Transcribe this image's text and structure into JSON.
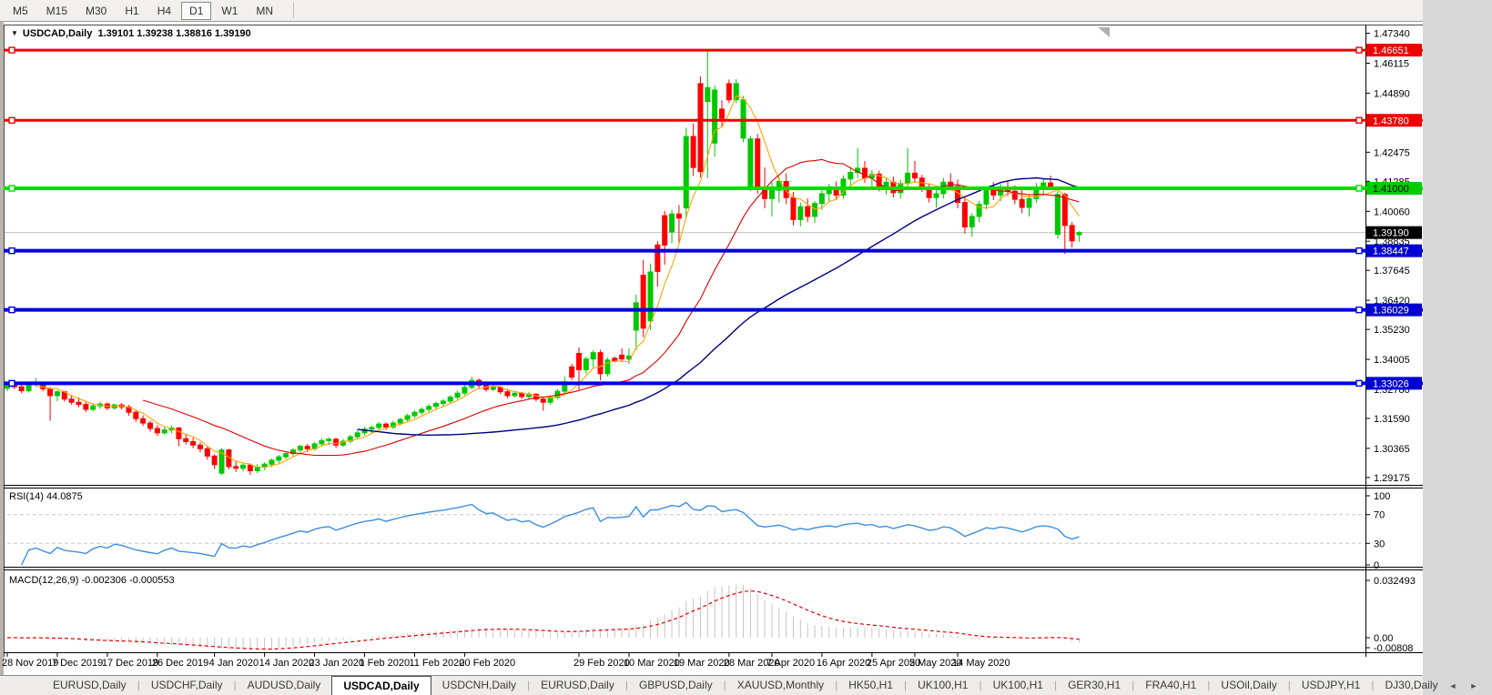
{
  "toolbar": {
    "timeframes": [
      "M5",
      "M15",
      "M30",
      "H1",
      "H4",
      "D1",
      "W1",
      "MN"
    ],
    "active": "D1"
  },
  "window": {
    "title_arrow": "▼",
    "symbol_title": "USDCAD,Daily",
    "ohlc_text": "1.39101 1.39238 1.38816 1.39190"
  },
  "chart_data": {
    "type": "candlestick",
    "symbol": "USDCAD",
    "timeframe": "Daily",
    "ohlc_title": [
      "1.39101",
      "1.39238",
      "1.38816",
      "1.39190"
    ],
    "colors": {
      "up": "#00C800",
      "down": "#FF0000",
      "ma_fast": "#FFA500",
      "ma_mid": "#DC0000",
      "ma_slow": "#000080",
      "bid_line": "#C0C0C0",
      "rsi_line": "#3E8EDE",
      "macd_hist": "#C4C4C4",
      "macd_signal": "#E00000",
      "level_red": "#EE0000",
      "level_green": "#00DD00",
      "level_blue": "#0000E0"
    },
    "price_axis_ticks": [
      "1.47340",
      "1.46115",
      "1.44890",
      "1.42475",
      "1.41285",
      "1.40060",
      "1.38835",
      "1.37645",
      "1.36420",
      "1.35230",
      "1.34005",
      "1.32780",
      "1.31590",
      "1.30365",
      "1.29175"
    ],
    "hlines": [
      {
        "price": 1.46651,
        "color": "#EE0000",
        "width": 3
      },
      {
        "price": 1.4378,
        "color": "#EE0000",
        "width": 3
      },
      {
        "price": 1.41,
        "color": "#00DD00",
        "width": 4
      },
      {
        "price": 1.38447,
        "color": "#0000E0",
        "width": 4
      },
      {
        "price": 1.36029,
        "color": "#0000E0",
        "width": 4
      },
      {
        "price": 1.33026,
        "color": "#0000E0",
        "width": 4
      }
    ],
    "current_price": {
      "text": "1.39190",
      "price": 1.3919
    },
    "badges": [
      {
        "text": "1.46651",
        "price": 1.46651,
        "bg": "#EE0000",
        "fg": "#ffffff"
      },
      {
        "text": "1.43780",
        "price": 1.4378,
        "bg": "#EE0000",
        "fg": "#ffffff"
      },
      {
        "text": "1.41000",
        "price": 1.41,
        "bg": "#00CC00",
        "fg": "#000000"
      },
      {
        "text": "1.39190",
        "price": 1.3919,
        "bg": "#000000",
        "fg": "#ffffff"
      },
      {
        "text": "1.38447",
        "price": 1.38447,
        "bg": "#0000D0",
        "fg": "#ffffff"
      },
      {
        "text": "1.36029",
        "price": 1.36029,
        "bg": "#0000D0",
        "fg": "#ffffff"
      },
      {
        "text": "1.33026",
        "price": 1.33026,
        "bg": "#0000D0",
        "fg": "#ffffff"
      }
    ],
    "moving_averages": [
      {
        "period": 5,
        "color": "#FFA500"
      },
      {
        "period": 20,
        "color": "#DC0000"
      },
      {
        "period": 50,
        "color": "#000080"
      }
    ],
    "x_labels": [
      {
        "i": 0,
        "t": "28 Nov 2019"
      },
      {
        "i": 7,
        "t": "7 Dec 2019"
      },
      {
        "i": 14,
        "t": "17 Dec 2019"
      },
      {
        "i": 21,
        "t": "26 Dec 2019"
      },
      {
        "i": 29,
        "t": "4 Jan 2020"
      },
      {
        "i": 36,
        "t": "14 Jan 2020"
      },
      {
        "i": 43,
        "t": "23 Jan 2020"
      },
      {
        "i": 50,
        "t": "1 Feb 2020"
      },
      {
        "i": 57,
        "t": "11 Feb 2020"
      },
      {
        "i": 64,
        "t": "20 Feb 2020"
      },
      {
        "i": 80,
        "t": "29 Feb 2020"
      },
      {
        "i": 87,
        "t": "10 Mar 2020"
      },
      {
        "i": 94,
        "t": "19 Mar 2020"
      },
      {
        "i": 101,
        "t": "28 Mar 2020"
      },
      {
        "i": 107,
        "t": "7 Apr 2020"
      },
      {
        "i": 114,
        "t": "16 Apr 2020"
      },
      {
        "i": 121,
        "t": "25 Apr 2020"
      },
      {
        "i": 127,
        "t": "5 May 2020"
      },
      {
        "i": 133,
        "t": "14 May 2020"
      }
    ],
    "candles": [
      [
        1.3282,
        1.3308,
        1.327,
        1.3295
      ],
      [
        1.3295,
        1.3312,
        1.3278,
        1.3288
      ],
      [
        1.3288,
        1.33,
        1.3262,
        1.3272
      ],
      [
        1.3272,
        1.3305,
        1.3265,
        1.3298
      ],
      [
        1.3298,
        1.3325,
        1.329,
        1.3302
      ],
      [
        1.3302,
        1.331,
        1.327,
        1.328
      ],
      [
        1.328,
        1.3288,
        1.315,
        1.3252
      ],
      [
        1.3252,
        1.3275,
        1.323,
        1.3268
      ],
      [
        1.3268,
        1.3272,
        1.3228,
        1.3238
      ],
      [
        1.3238,
        1.3255,
        1.3215,
        1.3225
      ],
      [
        1.3225,
        1.3245,
        1.3205,
        1.3216
      ],
      [
        1.3216,
        1.3228,
        1.3185,
        1.3196
      ],
      [
        1.3196,
        1.3222,
        1.3188,
        1.321
      ],
      [
        1.321,
        1.3228,
        1.3198,
        1.3218
      ],
      [
        1.3218,
        1.3224,
        1.3192,
        1.3202
      ],
      [
        1.3202,
        1.322,
        1.3195,
        1.3214
      ],
      [
        1.3214,
        1.3222,
        1.3196,
        1.3206
      ],
      [
        1.3206,
        1.3214,
        1.317,
        1.3184
      ],
      [
        1.3184,
        1.3192,
        1.3145,
        1.3158
      ],
      [
        1.3158,
        1.3172,
        1.3128,
        1.314
      ],
      [
        1.314,
        1.315,
        1.3105,
        1.3118
      ],
      [
        1.3118,
        1.3132,
        1.3088,
        1.31
      ],
      [
        1.31,
        1.3125,
        1.3092,
        1.3112
      ],
      [
        1.3112,
        1.313,
        1.3098,
        1.312
      ],
      [
        1.312,
        1.3124,
        1.3045,
        1.3076
      ],
      [
        1.3076,
        1.3092,
        1.3052,
        1.3064
      ],
      [
        1.3064,
        1.308,
        1.3038,
        1.305
      ],
      [
        1.305,
        1.3062,
        1.302,
        1.3035
      ],
      [
        1.3035,
        1.3045,
        1.299,
        1.3005
      ],
      [
        1.3005,
        1.3012,
        1.2952,
        1.297
      ],
      [
        1.2935,
        1.3038,
        1.2928,
        1.303
      ],
      [
        1.303,
        1.3035,
        1.295,
        1.2962
      ],
      [
        1.2962,
        1.2985,
        1.294,
        1.2955
      ],
      [
        1.2955,
        1.2978,
        1.2942,
        1.2968
      ],
      [
        1.2968,
        1.2975,
        1.2928,
        1.2945
      ],
      [
        1.2945,
        1.2972,
        1.2935,
        1.296
      ],
      [
        1.296,
        1.298,
        1.2948,
        1.2972
      ],
      [
        1.2972,
        1.2995,
        1.296,
        1.2988
      ],
      [
        1.2988,
        1.301,
        1.2975,
        1.3002
      ],
      [
        1.3002,
        1.3022,
        1.2992,
        1.3015
      ],
      [
        1.3015,
        1.3038,
        1.3005,
        1.303
      ],
      [
        1.303,
        1.3052,
        1.302,
        1.3045
      ],
      [
        1.3045,
        1.3055,
        1.3022,
        1.3035
      ],
      [
        1.3035,
        1.3062,
        1.3028,
        1.3055
      ],
      [
        1.3055,
        1.3078,
        1.3045,
        1.3068
      ],
      [
        1.3068,
        1.3082,
        1.305,
        1.3074
      ],
      [
        1.3074,
        1.308,
        1.3038,
        1.305
      ],
      [
        1.305,
        1.3075,
        1.3042,
        1.3066
      ],
      [
        1.3066,
        1.3092,
        1.3058,
        1.3084
      ],
      [
        1.3084,
        1.311,
        1.3075,
        1.31
      ],
      [
        1.31,
        1.3125,
        1.309,
        1.3115
      ],
      [
        1.3115,
        1.313,
        1.3096,
        1.3122
      ],
      [
        1.3122,
        1.3145,
        1.3112,
        1.3136
      ],
      [
        1.3136,
        1.3142,
        1.3112,
        1.3124
      ],
      [
        1.3124,
        1.315,
        1.3116,
        1.314
      ],
      [
        1.314,
        1.3162,
        1.313,
        1.3155
      ],
      [
        1.3155,
        1.3178,
        1.3145,
        1.317
      ],
      [
        1.317,
        1.3192,
        1.316,
        1.3184
      ],
      [
        1.3184,
        1.3205,
        1.3174,
        1.3196
      ],
      [
        1.3196,
        1.3218,
        1.3186,
        1.3208
      ],
      [
        1.3208,
        1.3228,
        1.3198,
        1.322
      ],
      [
        1.322,
        1.3238,
        1.3204,
        1.323
      ],
      [
        1.323,
        1.3255,
        1.3222,
        1.3246
      ],
      [
        1.3246,
        1.3272,
        1.3238,
        1.3262
      ],
      [
        1.3262,
        1.3295,
        1.3254,
        1.3286
      ],
      [
        1.3286,
        1.333,
        1.3278,
        1.3315
      ],
      [
        1.3315,
        1.3322,
        1.3282,
        1.3294
      ],
      [
        1.3294,
        1.3305,
        1.3268,
        1.3278
      ],
      [
        1.3278,
        1.3298,
        1.327,
        1.3286
      ],
      [
        1.3286,
        1.3292,
        1.3258,
        1.3268
      ],
      [
        1.3268,
        1.328,
        1.3242,
        1.3252
      ],
      [
        1.3252,
        1.3272,
        1.3244,
        1.3262
      ],
      [
        1.3262,
        1.3268,
        1.3238,
        1.3248
      ],
      [
        1.3248,
        1.3268,
        1.324,
        1.3258
      ],
      [
        1.3258,
        1.3262,
        1.3228,
        1.3238
      ],
      [
        1.3238,
        1.3248,
        1.319,
        1.3225
      ],
      [
        1.3225,
        1.3252,
        1.3215,
        1.3245
      ],
      [
        1.3245,
        1.3278,
        1.3238,
        1.327
      ],
      [
        1.327,
        1.333,
        1.3262,
        1.3308
      ],
      [
        1.337,
        1.3382,
        1.3315,
        1.3328
      ],
      [
        1.3425,
        1.345,
        1.3275,
        1.3358
      ],
      [
        1.3358,
        1.3412,
        1.334,
        1.3402
      ],
      [
        1.3402,
        1.3438,
        1.3368,
        1.3428
      ],
      [
        1.3428,
        1.344,
        1.3315,
        1.3342
      ],
      [
        1.3342,
        1.3408,
        1.333,
        1.3398
      ],
      [
        1.3405,
        1.3412,
        1.3388,
        1.3395
      ],
      [
        1.3418,
        1.3445,
        1.339,
        1.3402
      ],
      [
        1.3402,
        1.3445,
        1.3382,
        1.3414
      ],
      [
        1.352,
        1.3665,
        1.3438,
        1.3632
      ],
      [
        1.3745,
        1.3808,
        1.3492,
        1.3528
      ],
      [
        1.3558,
        1.3792,
        1.3522,
        1.3758
      ],
      [
        1.3868,
        1.3885,
        1.3698,
        1.376
      ],
      [
        1.3988,
        1.4008,
        1.3788,
        1.3868
      ],
      [
        1.3922,
        1.4012,
        1.3875,
        1.3995
      ],
      [
        1.3995,
        1.4032,
        1.3878,
        1.3978
      ],
      [
        1.402,
        1.4348,
        1.3978,
        1.4312
      ],
      [
        1.4312,
        1.4365,
        1.415,
        1.4185
      ],
      [
        1.4528,
        1.4558,
        1.4145,
        1.4168
      ],
      [
        1.4455,
        1.4668,
        1.4142,
        1.4512
      ],
      [
        1.4285,
        1.452,
        1.423,
        1.4502
      ],
      [
        1.4424,
        1.446,
        1.4352,
        1.4386
      ],
      [
        1.4528,
        1.4545,
        1.4448,
        1.4462
      ],
      [
        1.4462,
        1.4546,
        1.4448,
        1.4528
      ],
      [
        1.4305,
        1.4478,
        1.4288,
        1.4462
      ],
      [
        1.4107,
        1.4315,
        1.4088,
        1.4302
      ],
      [
        1.4302,
        1.4322,
        1.4078,
        1.4105
      ],
      [
        1.4105,
        1.4185,
        1.4018,
        1.4058
      ],
      [
        1.4058,
        1.4125,
        1.3985,
        1.4092
      ],
      [
        1.4092,
        1.4148,
        1.4042,
        1.4128
      ],
      [
        1.4128,
        1.4162,
        1.4035,
        1.4062
      ],
      [
        1.4062,
        1.4085,
        1.3948,
        1.3972
      ],
      [
        1.3972,
        1.4042,
        1.3945,
        1.4025
      ],
      [
        1.4025,
        1.4058,
        1.3962,
        1.3985
      ],
      [
        1.3985,
        1.4048,
        1.3958,
        1.4038
      ],
      [
        1.4038,
        1.4092,
        1.4012,
        1.4078
      ],
      [
        1.4078,
        1.4118,
        1.4045,
        1.4102
      ],
      [
        1.4102,
        1.4128,
        1.4052,
        1.4072
      ],
      [
        1.4072,
        1.4152,
        1.4058,
        1.4138
      ],
      [
        1.4138,
        1.4188,
        1.4108,
        1.4165
      ],
      [
        1.4165,
        1.4265,
        1.4142,
        1.4182
      ],
      [
        1.4182,
        1.4212,
        1.4122,
        1.4142
      ],
      [
        1.4142,
        1.4175,
        1.4095,
        1.4158
      ],
      [
        1.4158,
        1.4172,
        1.4088,
        1.4108
      ],
      [
        1.4108,
        1.4142,
        1.4075,
        1.4125
      ],
      [
        1.4125,
        1.4148,
        1.4062,
        1.4082
      ],
      [
        1.4082,
        1.4135,
        1.4058,
        1.412
      ],
      [
        1.412,
        1.4265,
        1.4098,
        1.4162
      ],
      [
        1.4162,
        1.4212,
        1.4122,
        1.4142
      ],
      [
        1.4142,
        1.4155,
        1.4085,
        1.4105
      ],
      [
        1.4105,
        1.4118,
        1.4042,
        1.4062
      ],
      [
        1.4062,
        1.4095,
        1.4022,
        1.4078
      ],
      [
        1.4078,
        1.4142,
        1.4058,
        1.4125
      ],
      [
        1.4125,
        1.4162,
        1.4092,
        1.4108
      ],
      [
        1.4108,
        1.4135,
        1.4018,
        1.4042
      ],
      [
        1.4042,
        1.4068,
        1.3915,
        1.3942
      ],
      [
        1.3942,
        1.3998,
        1.3902,
        1.3985
      ],
      [
        1.3985,
        1.4048,
        1.3962,
        1.4035
      ],
      [
        1.4035,
        1.4108,
        1.4015,
        1.4092
      ],
      [
        1.4092,
        1.4125,
        1.4052,
        1.4072
      ],
      [
        1.4072,
        1.4118,
        1.4048,
        1.4105
      ],
      [
        1.4105,
        1.4128,
        1.4068,
        1.4088
      ],
      [
        1.4088,
        1.4112,
        1.4035,
        1.4055
      ],
      [
        1.4055,
        1.4098,
        1.3998,
        1.4022
      ],
      [
        1.4022,
        1.4075,
        1.3985,
        1.4058
      ],
      [
        1.4058,
        1.4122,
        1.404,
        1.4105
      ],
      [
        1.4105,
        1.4138,
        1.4072,
        1.4122
      ],
      [
        1.4122,
        1.4152,
        1.4095,
        1.4108
      ],
      [
        1.3912,
        1.4088,
        1.3895,
        1.4075
      ],
      [
        1.4075,
        1.4082,
        1.3832,
        1.3948
      ],
      [
        1.3948,
        1.3962,
        1.3858,
        1.3885
      ],
      [
        1.39101,
        1.39238,
        1.38816,
        1.3919
      ]
    ],
    "rsi": {
      "label": "RSI(14) 44.0875",
      "period": 14,
      "last": 44.0875,
      "axis": [
        "100",
        "70",
        "30",
        "0"
      ],
      "dashed_levels": [
        70,
        30
      ]
    },
    "macd": {
      "label": "MACD(12,26,9) -0.002306 -0.000553",
      "fast": 12,
      "slow": 26,
      "signal": 9,
      "last_main": -0.002306,
      "last_signal": -0.000553,
      "axis": [
        "0.032493",
        "0.00",
        "-0.00808"
      ]
    }
  },
  "tabs": {
    "items": [
      "EURUSD,Daily",
      "USDCHF,Daily",
      "AUDUSD,Daily",
      "USDCAD,Daily",
      "USDCNH,Daily",
      "EURUSD,Daily",
      "GBPUSD,Daily",
      "XAUUSD,Monthly",
      "HK50,H1",
      "UK100,H1",
      "UK100,H1",
      "GER30,H1",
      "FRA40,H1",
      "USOil,Daily",
      "USDJPY,H1",
      "DJ30,Daily"
    ],
    "active_index": 3,
    "left_arrow": "◄",
    "right_arrow": "►"
  }
}
